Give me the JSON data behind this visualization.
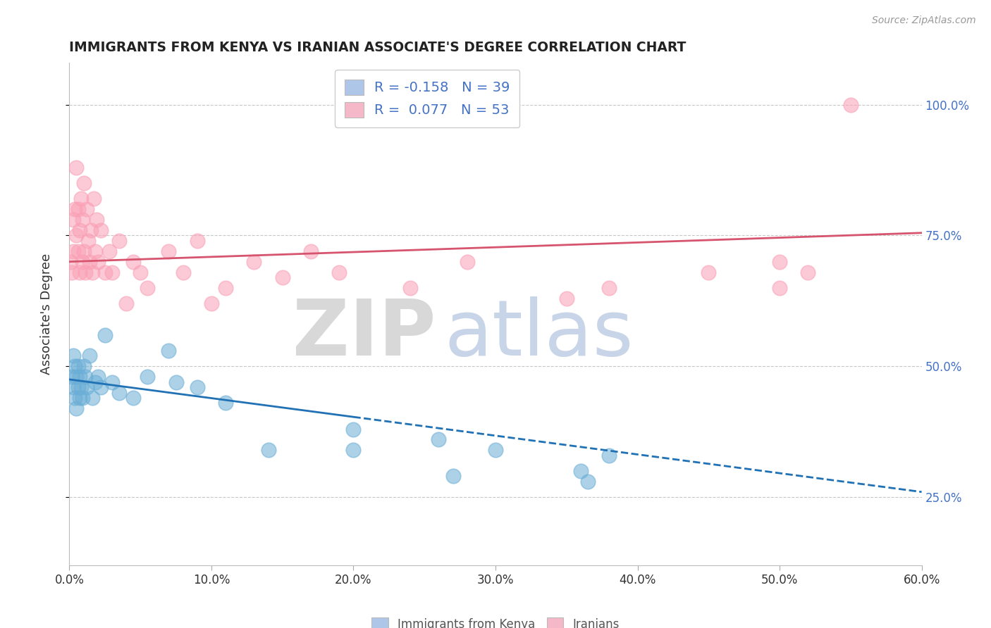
{
  "title": "IMMIGRANTS FROM KENYA VS IRANIAN ASSOCIATE'S DEGREE CORRELATION CHART",
  "source": "Source: ZipAtlas.com",
  "ylabel": "Associate's Degree",
  "x_tick_labels": [
    "0.0%",
    "10.0%",
    "20.0%",
    "30.0%",
    "40.0%",
    "50.0%",
    "60.0%"
  ],
  "x_tick_values": [
    0.0,
    10.0,
    20.0,
    30.0,
    40.0,
    50.0,
    60.0
  ],
  "y_tick_labels": [
    "25.0%",
    "50.0%",
    "75.0%",
    "100.0%"
  ],
  "y_tick_values": [
    25.0,
    50.0,
    75.0,
    100.0
  ],
  "xlim": [
    0.0,
    60.0
  ],
  "ylim": [
    12.0,
    108.0
  ],
  "blue_color": "#6baed6",
  "pink_color": "#fa9fb5",
  "blue_line_color": "#2171b5",
  "pink_line_color": "#d6546e",
  "legend_box_blue": "#aec6e8",
  "legend_box_pink": "#f4b8c8",
  "background_color": "#ffffff",
  "grid_color": "#c8c8c8",
  "kenya_x": [
    0.2,
    0.3,
    0.3,
    0.4,
    0.4,
    0.5,
    0.5,
    0.6,
    0.6,
    0.7,
    0.7,
    0.8,
    0.9,
    1.0,
    1.1,
    1.2,
    1.4,
    1.6,
    1.8,
    2.0,
    2.2,
    2.5,
    3.0,
    3.5,
    4.5,
    5.5,
    7.0,
    7.5,
    9.0,
    11.0,
    14.0,
    20.0,
    26.0,
    30.0,
    36.0,
    36.5,
    38.0,
    20.0,
    27.0
  ],
  "kenya_y": [
    48.0,
    52.0,
    46.0,
    50.0,
    44.0,
    48.0,
    42.0,
    46.0,
    50.0,
    44.0,
    48.0,
    46.0,
    44.0,
    50.0,
    48.0,
    46.0,
    52.0,
    44.0,
    47.0,
    48.0,
    46.0,
    56.0,
    47.0,
    45.0,
    44.0,
    48.0,
    53.0,
    47.0,
    46.0,
    43.0,
    34.0,
    38.0,
    36.0,
    34.0,
    30.0,
    28.0,
    33.0,
    34.0,
    29.0
  ],
  "iran_x": [
    0.1,
    0.2,
    0.3,
    0.3,
    0.4,
    0.5,
    0.5,
    0.6,
    0.6,
    0.7,
    0.7,
    0.8,
    0.9,
    0.9,
    1.0,
    1.0,
    1.1,
    1.2,
    1.3,
    1.4,
    1.5,
    1.6,
    1.7,
    1.8,
    1.9,
    2.0,
    2.2,
    2.5,
    2.8,
    3.0,
    3.5,
    4.0,
    4.5,
    5.0,
    5.5,
    7.0,
    8.0,
    9.0,
    10.0,
    11.0,
    13.0,
    15.0,
    17.0,
    19.0,
    24.0,
    28.0,
    35.0,
    38.0,
    45.0,
    50.0,
    50.0,
    52.0,
    55.0
  ],
  "iran_y": [
    70.0,
    68.0,
    72.0,
    78.0,
    80.0,
    75.0,
    88.0,
    72.0,
    80.0,
    68.0,
    76.0,
    82.0,
    70.0,
    78.0,
    72.0,
    85.0,
    68.0,
    80.0,
    74.0,
    70.0,
    76.0,
    68.0,
    82.0,
    72.0,
    78.0,
    70.0,
    76.0,
    68.0,
    72.0,
    68.0,
    74.0,
    62.0,
    70.0,
    68.0,
    65.0,
    72.0,
    68.0,
    74.0,
    62.0,
    65.0,
    70.0,
    67.0,
    72.0,
    68.0,
    65.0,
    70.0,
    63.0,
    65.0,
    68.0,
    65.0,
    70.0,
    68.0,
    100.0
  ],
  "kenya_line_x0": 0.0,
  "kenya_line_y0": 47.5,
  "kenya_line_x1": 60.0,
  "kenya_line_y1": 26.0,
  "kenya_solid_end_x": 20.0,
  "iran_line_x0": 0.0,
  "iran_line_y0": 70.0,
  "iran_line_x1": 60.0,
  "iran_line_y1": 75.5
}
